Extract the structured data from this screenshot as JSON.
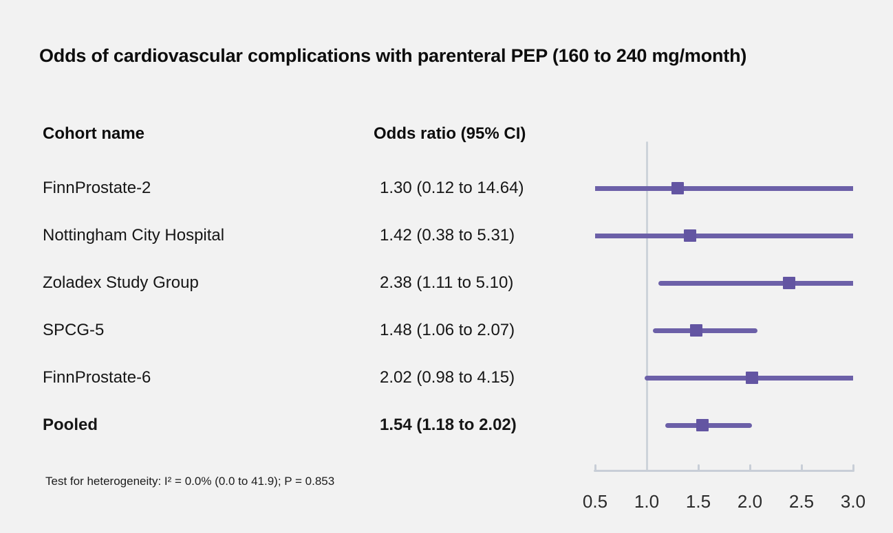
{
  "title": "Odds of cardiovascular complications with parenteral PEP (160 to 240 mg/month)",
  "table": {
    "col1_header": "Cohort name",
    "col2_header": "Odds ratio (95% CI)"
  },
  "footnote": "Test for heterogeneity: I² = 0.0% (0.0 to 41.9); P = 0.853",
  "colors": {
    "background": "#f2f2f2",
    "ci_line": "#6c60a8",
    "marker": "#6355a2",
    "reference_line": "#cdd3da",
    "axis": "#c8ced7",
    "text": "#161616"
  },
  "chart_data": {
    "type": "scatter",
    "subtype": "forest_plot",
    "title": "Odds of cardiovascular complications with parenteral PEP (160 to 240 mg/month)",
    "xlabel": "",
    "ylabel": "",
    "xlim": [
      0.5,
      3.0
    ],
    "x_ticks": [
      0.5,
      1.0,
      1.5,
      2.0,
      2.5,
      3.0
    ],
    "x_tick_labels": [
      "0.5",
      "1.0",
      "1.5",
      "2.0",
      "2.5",
      "3.0"
    ],
    "reference_line_x": 1.0,
    "legend": "none",
    "grid": "off",
    "rows": [
      {
        "label": "FinnProstate-2",
        "value_text": "1.30 (0.12 to 14.64)",
        "estimate": 1.3,
        "ci_lower": 0.12,
        "ci_upper": 14.64,
        "bold": false
      },
      {
        "label": "Nottingham City Hospital",
        "value_text": "1.42 (0.38 to 5.31)",
        "estimate": 1.42,
        "ci_lower": 0.38,
        "ci_upper": 5.31,
        "bold": false
      },
      {
        "label": "Zoladex Study Group",
        "value_text": "2.38 (1.11 to 5.10)",
        "estimate": 2.38,
        "ci_lower": 1.11,
        "ci_upper": 5.1,
        "bold": false
      },
      {
        "label": "SPCG-5",
        "value_text": "1.48 (1.06 to 2.07)",
        "estimate": 1.48,
        "ci_lower": 1.06,
        "ci_upper": 2.07,
        "bold": false
      },
      {
        "label": "FinnProstate-6",
        "value_text": "2.02 (0.98 to 4.15)",
        "estimate": 2.02,
        "ci_lower": 0.98,
        "ci_upper": 4.15,
        "bold": false
      },
      {
        "label": "Pooled",
        "value_text": "1.54 (1.18 to 2.02)",
        "estimate": 1.54,
        "ci_lower": 1.18,
        "ci_upper": 2.02,
        "bold": true
      }
    ],
    "footnote": "Test for heterogeneity: I² = 0.0% (0.0 to 41.9); P = 0.853"
  }
}
